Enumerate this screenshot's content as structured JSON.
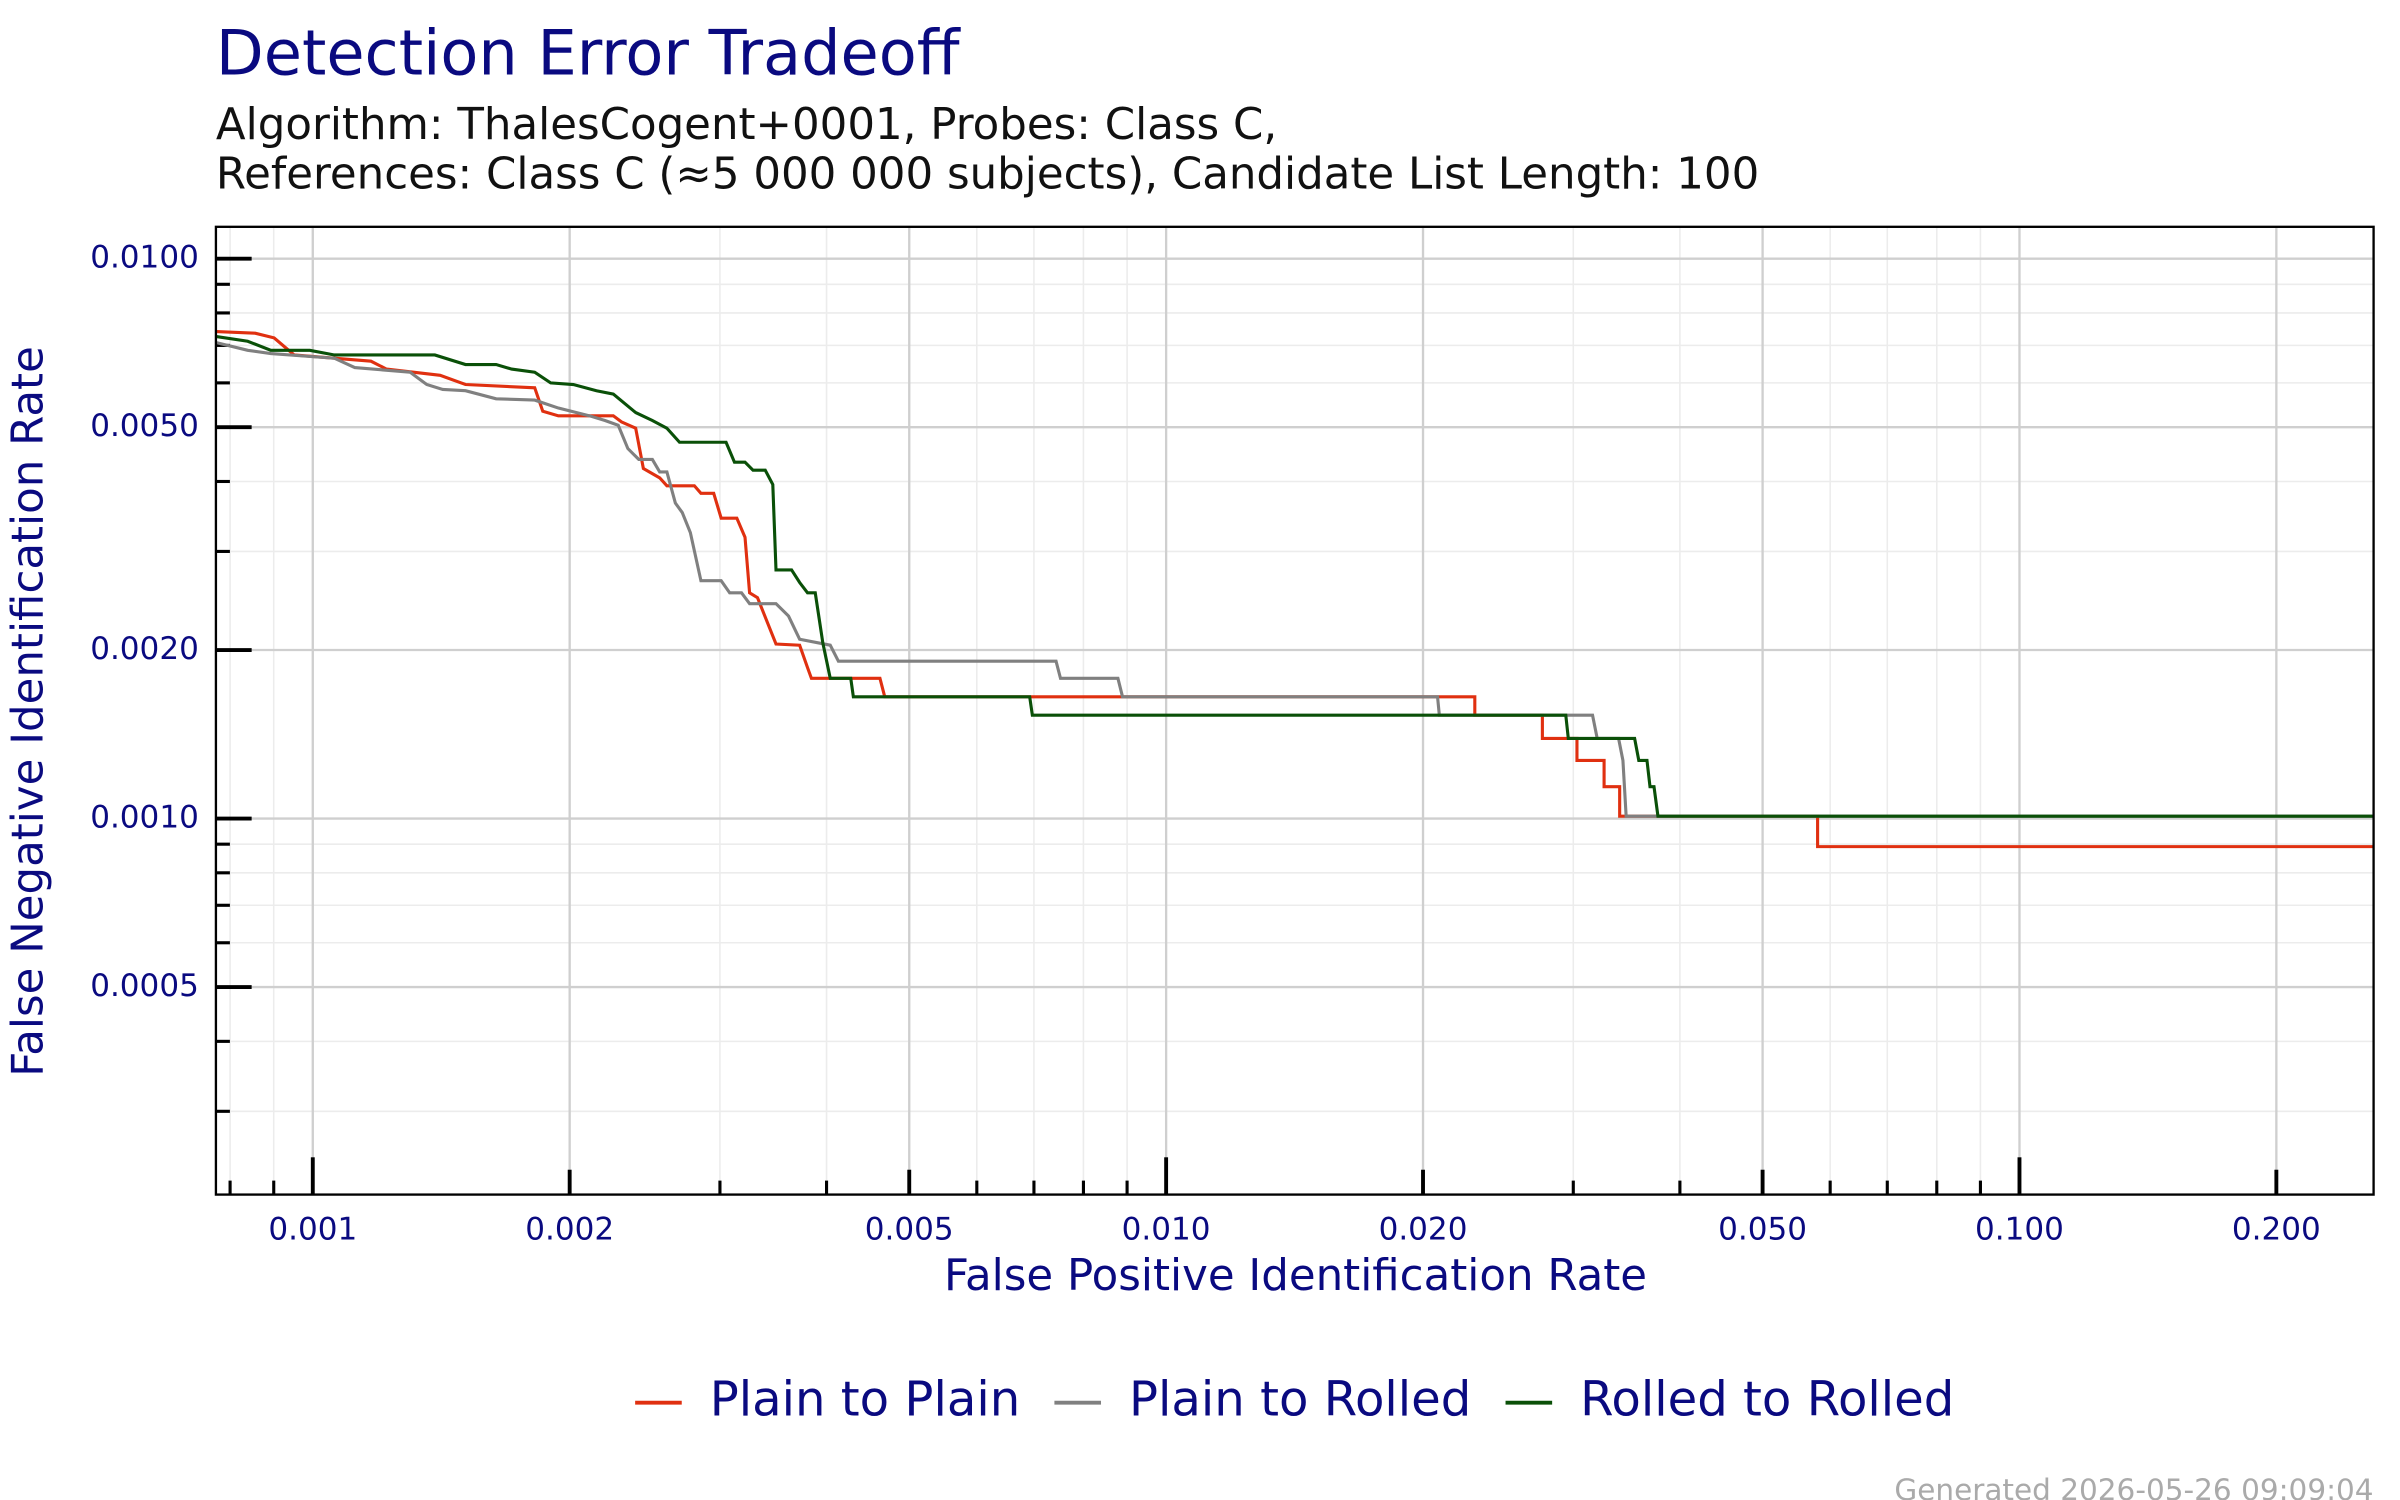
{
  "chart_data": {
    "type": "line",
    "title": "Detection Error Tradeoff",
    "subtitle": [
      "Algorithm: ThalesCogent+0001, Probes: Class C,",
      "References: Class C (≈5 000 000 subjects), Candidate List Length: 100"
    ],
    "x_label": "False Positive Identification Rate",
    "y_label": "False Negative Identification Rate",
    "footer": "Generated 2026-05-26 09:09:04",
    "log_x": true,
    "log_y": true,
    "grid": true,
    "legend": "bottom",
    "xlim": [
      0.00077,
      0.26
    ],
    "ylim": [
      0.000213,
      0.0114
    ],
    "xticks": [
      0.001,
      0.002,
      0.005,
      {
        "value": 0.01,
        "label": "0.010"
      },
      {
        "value": 0.02,
        "label": "0.020"
      },
      {
        "value": 0.05,
        "label": "0.050"
      },
      {
        "value": 0.1,
        "label": "0.100"
      },
      {
        "value": 0.2,
        "label": "0.200"
      }
    ],
    "yticks": [
      {
        "value": 0.01,
        "label": "0.0100"
      },
      {
        "value": 0.005,
        "label": "0.0050"
      },
      {
        "value": 0.002,
        "label": "0.0020"
      },
      {
        "value": 0.001,
        "label": "0.0010"
      },
      {
        "value": 0.0005,
        "label": "0.0005"
      }
    ],
    "series": [
      {
        "name": "Plain to Plain",
        "color": "#e03010",
        "x": [
          0.000771,
          0.000856,
          0.000901,
          0.000951,
          0.00117,
          0.00122,
          0.00141,
          0.00151,
          0.00182,
          0.00186,
          0.00194,
          0.00225,
          0.0023,
          0.00239,
          0.00244,
          0.00255,
          0.0026,
          0.0028,
          0.00285,
          0.00295,
          0.00301,
          0.00314,
          0.00321,
          0.00325,
          0.00332,
          0.00349,
          0.00372,
          0.0038,
          0.00384,
          0.00462,
          0.00468,
          0.023,
          0.023,
          0.0276,
          0.0276,
          0.0303,
          0.0303,
          0.0326,
          0.0326,
          0.034,
          0.034,
          0.058,
          0.058,
          0.26
        ],
        "values": [
          0.00741,
          0.00736,
          0.00722,
          0.00673,
          0.00656,
          0.00635,
          0.00619,
          0.00596,
          0.00588,
          0.00534,
          0.00524,
          0.00524,
          0.00511,
          0.00498,
          0.00422,
          0.00406,
          0.00393,
          0.00393,
          0.00381,
          0.00381,
          0.00344,
          0.00344,
          0.00318,
          0.00253,
          0.00248,
          0.00205,
          0.00204,
          0.00186,
          0.00178,
          0.00178,
          0.00165,
          0.00165,
          0.00153,
          0.00153,
          0.00139,
          0.00139,
          0.00127,
          0.00127,
          0.00114,
          0.00114,
          0.00101,
          0.00101,
          0.000891,
          0.000891
        ]
      },
      {
        "name": "Plain to Rolled",
        "color": "#808080",
        "x": [
          0.000771,
          0.000839,
          0.000893,
          0.00106,
          0.00112,
          0.0013,
          0.00136,
          0.00142,
          0.00151,
          0.00164,
          0.00182,
          0.00194,
          0.00211,
          0.0022,
          0.00228,
          0.00234,
          0.00241,
          0.0025,
          0.00255,
          0.0026,
          0.00266,
          0.00271,
          0.00277,
          0.00285,
          0.00301,
          0.00308,
          0.00318,
          0.00325,
          0.00349,
          0.00361,
          0.00372,
          0.00404,
          0.00413,
          0.00743,
          0.00752,
          0.00878,
          0.00889,
          0.0208,
          0.0209,
          0.0316,
          0.032,
          0.0339,
          0.0343,
          0.0346,
          0.26
        ],
        "values": [
          0.00708,
          0.00686,
          0.00677,
          0.00664,
          0.00639,
          0.00627,
          0.00596,
          0.00584,
          0.00581,
          0.00562,
          0.00559,
          0.00541,
          0.00524,
          0.00514,
          0.00504,
          0.00458,
          0.00438,
          0.00438,
          0.00416,
          0.00416,
          0.00366,
          0.00352,
          0.00324,
          0.00266,
          0.00266,
          0.00253,
          0.00253,
          0.00242,
          0.00242,
          0.0023,
          0.00209,
          0.00204,
          0.00191,
          0.00191,
          0.00178,
          0.00178,
          0.00165,
          0.00165,
          0.00153,
          0.00153,
          0.00139,
          0.00139,
          0.00127,
          0.00101,
          0.00101
        ]
      },
      {
        "name": "Rolled to Rolled",
        "color": "#0a5008",
        "x": [
          0.000771,
          0.000839,
          0.000893,
          0.000992,
          0.00106,
          0.00139,
          0.00151,
          0.00164,
          0.00171,
          0.00182,
          0.0019,
          0.00202,
          0.00215,
          0.00225,
          0.00239,
          0.0025,
          0.0026,
          0.00269,
          0.00305,
          0.00312,
          0.00321,
          0.00328,
          0.00339,
          0.00346,
          0.00349,
          0.00364,
          0.00372,
          0.0038,
          0.00388,
          0.00396,
          0.00404,
          0.00427,
          0.0043,
          0.00692,
          0.00697,
          0.0294,
          0.0296,
          0.0354,
          0.0358,
          0.0366,
          0.0369,
          0.0373,
          0.0377,
          0.26
        ],
        "values": [
          0.00726,
          0.00712,
          0.00686,
          0.00686,
          0.00673,
          0.00673,
          0.00647,
          0.00647,
          0.00635,
          0.00627,
          0.006,
          0.00596,
          0.00581,
          0.00573,
          0.00531,
          0.00514,
          0.00498,
          0.0047,
          0.0047,
          0.00433,
          0.00433,
          0.00419,
          0.00419,
          0.00395,
          0.00278,
          0.00278,
          0.00264,
          0.00253,
          0.00253,
          0.00206,
          0.00178,
          0.00178,
          0.00165,
          0.00165,
          0.00153,
          0.00153,
          0.00139,
          0.00139,
          0.00127,
          0.00127,
          0.00114,
          0.00114,
          0.00101,
          0.00101
        ]
      }
    ]
  }
}
